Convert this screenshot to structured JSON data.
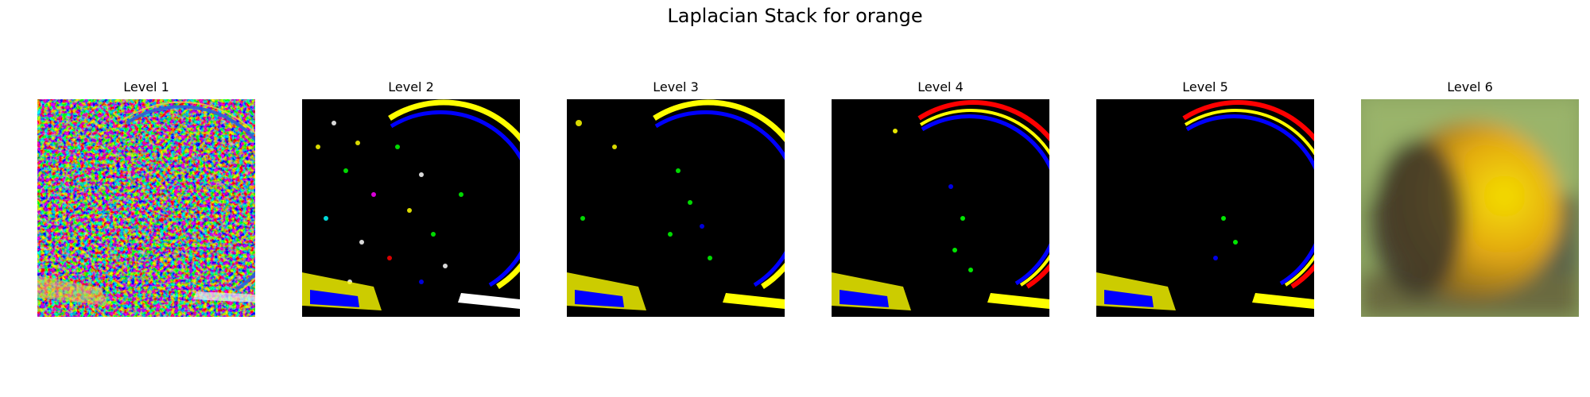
{
  "figure": {
    "title": "Laplacian Stack for orange"
  },
  "panels": [
    {
      "title": "Level 1",
      "colors": {
        "base": "#7a7a7a",
        "ring": "#3a6fd8"
      }
    },
    {
      "title": "Level 2",
      "colors": {
        "base": "#000000",
        "ring": "#ffff00",
        "ring_inner": "#0000ff"
      }
    },
    {
      "title": "Level 3",
      "colors": {
        "base": "#000000",
        "ring": "#ffff00",
        "ring_inner": "#0000ff"
      }
    },
    {
      "title": "Level 4",
      "colors": {
        "base": "#000000",
        "ring": "#ff0000",
        "ring_inner": "#0000ff"
      }
    },
    {
      "title": "Level 5",
      "colors": {
        "base": "#000000",
        "ring": "#ff0000",
        "ring_inner": "#0000ff"
      }
    },
    {
      "title": "Level 6",
      "colors": {
        "bg": "#7f9a5a",
        "orange": "#e8b30a",
        "shadow": "#3a3424"
      }
    }
  ]
}
